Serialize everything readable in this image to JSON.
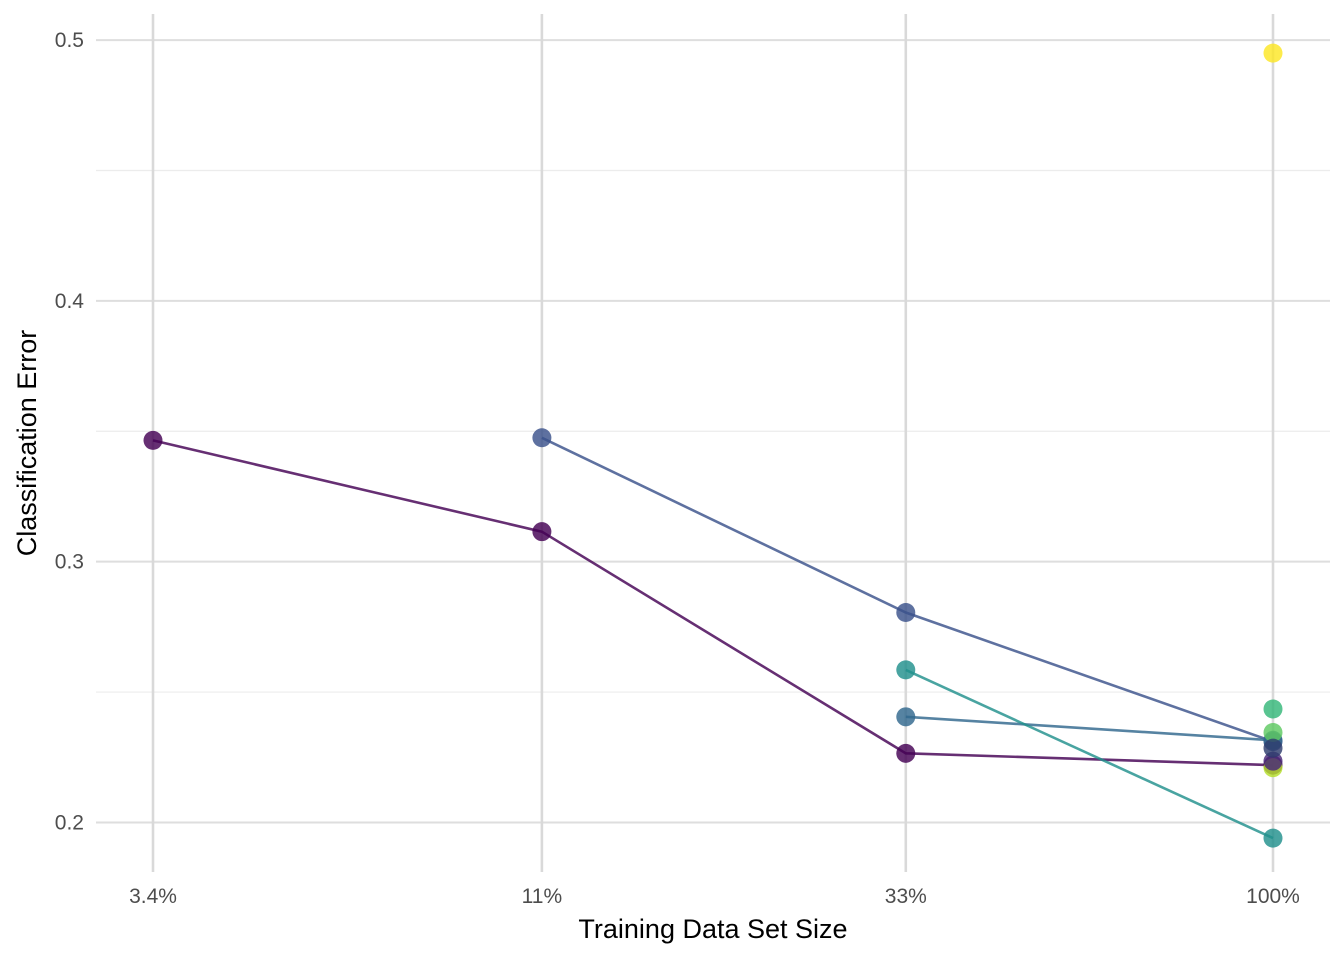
{
  "chart_data": {
    "type": "scatter",
    "xlabel": "Training Data Set Size",
    "ylabel": "Classification Error",
    "x_ticks": [
      "3.4%",
      "11%",
      "33%",
      "100%"
    ],
    "x_scale": "log",
    "x_values": [
      0.034,
      0.11,
      0.33,
      1.0
    ],
    "y_ticks": [
      0.2,
      0.3,
      0.4,
      0.5
    ],
    "y_tick_labels": [
      "0.2",
      "0.3",
      "0.4",
      "0.5"
    ],
    "ylim": [
      0.181,
      0.51
    ],
    "grid": true,
    "legend": "none",
    "series": [
      {
        "color": "#440154",
        "points": [
          [
            0.034,
            0.3465
          ],
          [
            0.11,
            0.3115
          ],
          [
            0.33,
            0.2265
          ],
          [
            1.0,
            0.222
          ]
        ],
        "connected": true
      },
      {
        "color": "#3b528b",
        "points": [
          [
            0.11,
            0.3475
          ],
          [
            0.33,
            0.2805
          ],
          [
            1.0,
            0.231
          ]
        ],
        "connected": true
      },
      {
        "color": "#31688e",
        "points": [
          [
            0.33,
            0.2405
          ],
          [
            1.0,
            0.2315
          ]
        ],
        "connected": true
      },
      {
        "color": "#21908c",
        "points": [
          [
            0.33,
            0.2585
          ],
          [
            1.0,
            0.194
          ]
        ],
        "connected": true
      },
      {
        "color": "#fde725",
        "points": [
          [
            1.0,
            0.495
          ]
        ],
        "connected": false
      },
      {
        "color": "#35b779",
        "points": [
          [
            1.0,
            0.2435
          ]
        ],
        "connected": false
      },
      {
        "color": "#5ec962",
        "points": [
          [
            1.0,
            0.2345
          ]
        ],
        "connected": false
      },
      {
        "color": "#b5de2b",
        "points": [
          [
            1.0,
            0.221
          ]
        ],
        "connected": false
      },
      {
        "color": "#482878",
        "points": [
          [
            1.0,
            0.2235
          ]
        ],
        "connected": false
      },
      {
        "color": "#2e3d6e",
        "points": [
          [
            1.0,
            0.2285
          ]
        ],
        "connected": false
      }
    ]
  }
}
